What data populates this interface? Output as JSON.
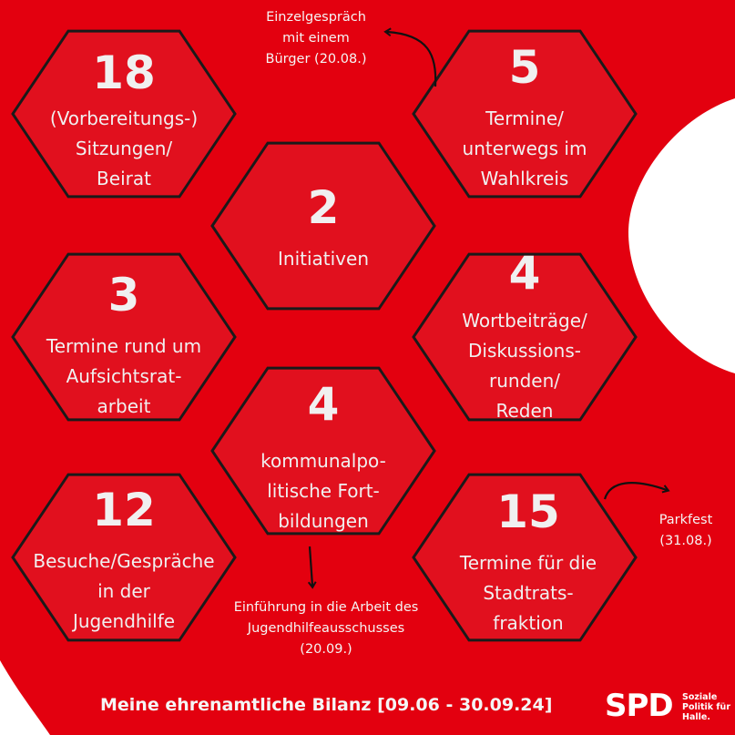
{
  "colors": {
    "background_red": "#E3000F",
    "hexagon_fill": "#E1101E",
    "hexagon_stroke": "#1A1A1A",
    "text": "#F0F0F0",
    "white_shape": "#FFFFFF"
  },
  "hexagons": [
    {
      "number": "18",
      "label": "(Vorbereitungs-)\nSitzungen/\nBeirat"
    },
    {
      "number": "5",
      "label": "Termine/\nunterwegs im\nWahlkreis"
    },
    {
      "number": "2",
      "label": "Initiativen"
    },
    {
      "number": "3",
      "label": "Termine rund um\nAufsichtsrat-\narbeit"
    },
    {
      "number": "4",
      "label": "Wortbeiträge/\nDiskussions-\nrunden/\nReden"
    },
    {
      "number": "4",
      "label": "kommunalpo-\nlitische Fort-\nbildungen"
    },
    {
      "number": "12",
      "label": "Besuche/Gespräche\nin der\nJugendhilfe"
    },
    {
      "number": "15",
      "label": "Termine für die\nStadtrats-\nfraktion"
    }
  ],
  "notes": {
    "einzelgespraech": "Einzelgespräch\nmit einem\nBürger (20.08.)",
    "parkfest": "Parkfest\n(31.08.)",
    "jugendhilfe": "Einführung in die Arbeit des\nJugendhilfeausschusses\n(20.09.)"
  },
  "footer": {
    "title": "Meine ehrenamtliche Bilanz [09.06 - 30.09.24]",
    "logo": "SPD",
    "claim": "Soziale\nPolitik für\nHalle."
  }
}
